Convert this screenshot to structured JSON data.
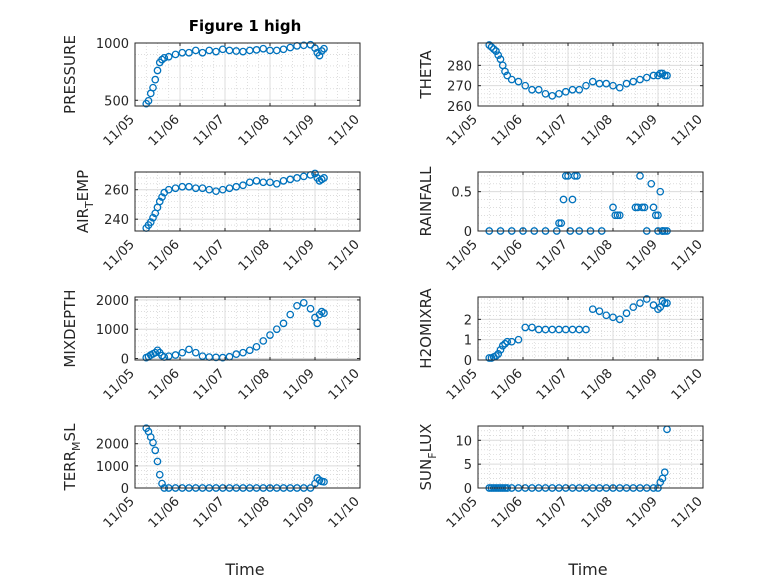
{
  "figure": {
    "title": "Figure 1 high",
    "xlabel": "Time"
  },
  "chart_data": [
    {
      "type": "scatter",
      "title": "Figure 1 high",
      "ylabel": "PRESSURE",
      "ylabel_parts": [
        "PRESSURE"
      ],
      "ylim": [
        450,
        1000
      ],
      "yticks": [
        500,
        1000
      ],
      "ytick_labels": [
        "500",
        "1000"
      ],
      "xlim": [
        0,
        5
      ],
      "xticks": [
        0,
        1,
        2,
        3,
        4,
        5
      ],
      "xtick_labels": [
        "11/05",
        "11/06",
        "11/07",
        "11/08",
        "11/09",
        "11/10"
      ],
      "grid": true,
      "marker_color": "#0072BD",
      "x": [
        0.25,
        0.3,
        0.35,
        0.4,
        0.45,
        0.5,
        0.55,
        0.6,
        0.65,
        0.75,
        0.9,
        1.05,
        1.2,
        1.35,
        1.5,
        1.65,
        1.8,
        1.95,
        2.1,
        2.25,
        2.4,
        2.55,
        2.7,
        2.85,
        3.0,
        3.15,
        3.3,
        3.45,
        3.6,
        3.75,
        3.9,
        4.0,
        4.05,
        4.1,
        4.15,
        4.2
      ],
      "y": [
        470,
        495,
        560,
        610,
        680,
        760,
        830,
        855,
        870,
        880,
        900,
        915,
        915,
        935,
        915,
        935,
        925,
        945,
        935,
        930,
        925,
        935,
        940,
        950,
        935,
        935,
        945,
        960,
        975,
        980,
        985,
        955,
        915,
        890,
        930,
        950
      ]
    },
    {
      "type": "scatter",
      "ylabel": "THETA",
      "ylabel_parts": [
        "THETA"
      ],
      "ylim": [
        260,
        291
      ],
      "yticks": [
        260,
        270,
        280
      ],
      "ytick_labels": [
        "260",
        "270",
        "280"
      ],
      "xlim": [
        0,
        5
      ],
      "xticks": [
        0,
        1,
        2,
        3,
        4,
        5
      ],
      "xtick_labels": [
        "11/05",
        "11/06",
        "11/07",
        "11/08",
        "11/09",
        "11/10"
      ],
      "grid": true,
      "marker_color": "#0072BD",
      "x": [
        0.25,
        0.3,
        0.35,
        0.4,
        0.45,
        0.5,
        0.55,
        0.6,
        0.65,
        0.75,
        0.9,
        1.05,
        1.2,
        1.35,
        1.5,
        1.65,
        1.8,
        1.95,
        2.1,
        2.25,
        2.4,
        2.55,
        2.7,
        2.85,
        3.0,
        3.15,
        3.3,
        3.45,
        3.6,
        3.75,
        3.9,
        4.0,
        4.05,
        4.1,
        4.15,
        4.2
      ],
      "y": [
        290,
        289,
        288,
        287,
        285,
        283,
        280,
        277,
        275,
        273,
        272,
        270,
        268,
        268,
        266,
        265,
        266,
        267,
        268,
        268,
        270,
        272,
        271,
        271,
        270,
        269,
        271,
        272,
        273,
        274,
        275,
        275,
        276,
        276,
        275,
        275
      ]
    },
    {
      "type": "scatter",
      "ylabel": "AIR_TEMP",
      "ylabel_parts": [
        "AIR",
        "T",
        "EMP"
      ],
      "ylim": [
        232,
        272
      ],
      "yticks": [
        240,
        260
      ],
      "ytick_labels": [
        "240",
        "260"
      ],
      "xlim": [
        0,
        5
      ],
      "xticks": [
        0,
        1,
        2,
        3,
        4,
        5
      ],
      "xtick_labels": [
        "11/05",
        "11/06",
        "11/07",
        "11/08",
        "11/09",
        "11/10"
      ],
      "grid": true,
      "marker_color": "#0072BD",
      "x": [
        0.25,
        0.3,
        0.35,
        0.4,
        0.45,
        0.5,
        0.55,
        0.6,
        0.65,
        0.75,
        0.9,
        1.05,
        1.2,
        1.35,
        1.5,
        1.65,
        1.8,
        1.95,
        2.1,
        2.25,
        2.4,
        2.55,
        2.7,
        2.85,
        3.0,
        3.15,
        3.3,
        3.45,
        3.6,
        3.75,
        3.9,
        4.0,
        4.05,
        4.1,
        4.15,
        4.2
      ],
      "y": [
        234,
        236,
        238,
        241,
        244,
        248,
        252,
        255,
        258,
        260,
        261,
        262,
        262,
        261,
        261,
        260,
        259,
        260,
        261,
        262,
        263,
        265,
        266,
        265,
        265,
        264,
        266,
        267,
        268,
        269,
        270,
        271,
        268,
        266,
        267,
        268
      ]
    },
    {
      "type": "scatter",
      "ylabel": "RAINFALL",
      "ylabel_parts": [
        "RAINFALL"
      ],
      "ylim": [
        0,
        0.75
      ],
      "yticks": [
        0,
        0.5
      ],
      "ytick_labels": [
        "0",
        "0.5"
      ],
      "xlim": [
        0,
        5
      ],
      "xticks": [
        0,
        1,
        2,
        3,
        4,
        5
      ],
      "xtick_labels": [
        "11/05",
        "11/06",
        "11/07",
        "11/08",
        "11/09",
        "11/10"
      ],
      "grid": true,
      "marker_color": "#0072BD",
      "x": [
        0.25,
        0.5,
        0.75,
        1.0,
        1.25,
        1.5,
        1.75,
        1.8,
        1.85,
        1.9,
        1.95,
        2.0,
        2.05,
        2.1,
        2.15,
        2.2,
        2.25,
        2.5,
        2.75,
        3.0,
        3.05,
        3.1,
        3.15,
        3.5,
        3.55,
        3.6,
        3.65,
        3.7,
        3.75,
        3.85,
        3.9,
        3.95,
        4.0,
        4.05,
        4.1,
        4.15,
        4.2,
        4.0,
        4.1
      ],
      "y": [
        0,
        0,
        0,
        0,
        0,
        0,
        0,
        0.1,
        0.1,
        0.4,
        0.7,
        0.7,
        0,
        0.4,
        0.7,
        0.7,
        0,
        0,
        0,
        0.3,
        0.2,
        0.2,
        0.2,
        0.3,
        0.3,
        0.7,
        0.3,
        0.3,
        0,
        0.6,
        0.3,
        0.2,
        0.2,
        0.5,
        0,
        0,
        0,
        0,
        0
      ]
    },
    {
      "type": "scatter",
      "ylabel": "MIXDEPTH",
      "ylabel_parts": [
        "MIXDEPTH"
      ],
      "ylim": [
        -50,
        2100
      ],
      "yticks": [
        0,
        1000,
        2000
      ],
      "ytick_labels": [
        "0",
        "1000",
        "2000"
      ],
      "xlim": [
        0,
        5
      ],
      "xticks": [
        0,
        1,
        2,
        3,
        4,
        5
      ],
      "xtick_labels": [
        "11/05",
        "11/06",
        "11/07",
        "11/08",
        "11/09",
        "11/10"
      ],
      "grid": true,
      "marker_color": "#0072BD",
      "x": [
        0.25,
        0.3,
        0.35,
        0.4,
        0.45,
        0.5,
        0.55,
        0.6,
        0.65,
        0.75,
        0.9,
        1.05,
        1.2,
        1.35,
        1.5,
        1.65,
        1.8,
        1.95,
        2.1,
        2.25,
        2.4,
        2.55,
        2.7,
        2.85,
        3.0,
        3.15,
        3.3,
        3.45,
        3.6,
        3.75,
        3.9,
        4.0,
        4.05,
        4.1,
        4.15,
        4.2
      ],
      "y": [
        30,
        60,
        120,
        160,
        200,
        280,
        200,
        100,
        50,
        80,
        120,
        200,
        310,
        200,
        80,
        50,
        40,
        30,
        60,
        150,
        200,
        280,
        400,
        600,
        800,
        1000,
        1200,
        1500,
        1800,
        1900,
        1700,
        1400,
        1200,
        1500,
        1600,
        1550
      ]
    },
    {
      "type": "scatter",
      "ylabel": "H2OMIXRA",
      "ylabel_parts": [
        "H2OMIXRA"
      ],
      "ylim": [
        0,
        3.1
      ],
      "yticks": [
        0,
        1,
        2
      ],
      "ytick_labels": [
        "0",
        "1",
        "2"
      ],
      "xlim": [
        0,
        5
      ],
      "xticks": [
        0,
        1,
        2,
        3,
        4,
        5
      ],
      "xtick_labels": [
        "11/05",
        "11/06",
        "11/07",
        "11/08",
        "11/09",
        "11/10"
      ],
      "grid": true,
      "marker_color": "#0072BD",
      "x": [
        0.25,
        0.3,
        0.35,
        0.4,
        0.45,
        0.5,
        0.55,
        0.6,
        0.65,
        0.75,
        0.9,
        1.05,
        1.2,
        1.35,
        1.5,
        1.65,
        1.8,
        1.95,
        2.1,
        2.25,
        2.4,
        2.55,
        2.7,
        2.85,
        3.0,
        3.15,
        3.3,
        3.45,
        3.6,
        3.75,
        3.9,
        4.0,
        4.05,
        4.1,
        4.15,
        4.2
      ],
      "y": [
        0.1,
        0.1,
        0.15,
        0.2,
        0.3,
        0.5,
        0.7,
        0.8,
        0.9,
        0.9,
        1.0,
        1.6,
        1.6,
        1.5,
        1.5,
        1.5,
        1.5,
        1.5,
        1.5,
        1.5,
        1.5,
        2.5,
        2.4,
        2.2,
        2.1,
        2.0,
        2.3,
        2.6,
        2.8,
        3.0,
        2.7,
        2.5,
        2.6,
        2.9,
        2.8,
        2.8
      ]
    },
    {
      "type": "scatter",
      "ylabel": "TERR_MSL",
      "ylabel_parts": [
        "TERR",
        "M",
        "SL"
      ],
      "ylim": [
        0,
        2800
      ],
      "yticks": [
        0,
        1000,
        2000
      ],
      "ytick_labels": [
        "0",
        "1000",
        "2000"
      ],
      "xlim": [
        0,
        5
      ],
      "xticks": [
        0,
        1,
        2,
        3,
        4,
        5
      ],
      "xtick_labels": [
        "11/05",
        "11/06",
        "11/07",
        "11/08",
        "11/09",
        "11/10"
      ],
      "grid": true,
      "marker_color": "#0072BD",
      "x": [
        0.25,
        0.3,
        0.35,
        0.4,
        0.45,
        0.5,
        0.55,
        0.6,
        0.65,
        0.75,
        0.9,
        1.05,
        1.2,
        1.35,
        1.5,
        1.65,
        1.8,
        1.95,
        2.1,
        2.25,
        2.4,
        2.55,
        2.7,
        2.85,
        3.0,
        3.15,
        3.3,
        3.45,
        3.6,
        3.75,
        3.9,
        4.0,
        4.05,
        4.1,
        4.15,
        4.2
      ],
      "y": [
        2700,
        2550,
        2300,
        2050,
        1700,
        1200,
        600,
        200,
        0,
        0,
        0,
        0,
        0,
        0,
        0,
        0,
        0,
        0,
        0,
        0,
        0,
        0,
        0,
        0,
        0,
        0,
        0,
        0,
        0,
        0,
        0,
        200,
        450,
        350,
        300,
        280
      ]
    },
    {
      "type": "scatter",
      "ylabel": "SUN_FLUX",
      "ylabel_parts": [
        "SUN",
        "F",
        "LUX"
      ],
      "ylim": [
        0,
        13
      ],
      "yticks": [
        0,
        5,
        10
      ],
      "ytick_labels": [
        "0",
        "5",
        "10"
      ],
      "xlim": [
        0,
        5
      ],
      "xticks": [
        0,
        1,
        2,
        3,
        4,
        5
      ],
      "xtick_labels": [
        "11/05",
        "11/06",
        "11/07",
        "11/08",
        "11/09",
        "11/10"
      ],
      "grid": true,
      "marker_color": "#0072BD",
      "x": [
        0.25,
        0.3,
        0.35,
        0.4,
        0.45,
        0.5,
        0.55,
        0.6,
        0.65,
        0.75,
        0.9,
        1.05,
        1.2,
        1.35,
        1.5,
        1.65,
        1.8,
        1.95,
        2.1,
        2.25,
        2.4,
        2.55,
        2.7,
        2.85,
        3.0,
        3.15,
        3.3,
        3.45,
        3.6,
        3.75,
        3.9,
        4.0,
        4.05,
        4.1,
        4.15,
        4.2
      ],
      "y": [
        0,
        0,
        0,
        0,
        0,
        0,
        0,
        0,
        0,
        0,
        0,
        0,
        0,
        0,
        0,
        0,
        0,
        0,
        0,
        0,
        0,
        0,
        0,
        0,
        0,
        0,
        0,
        0,
        0,
        0,
        0,
        0,
        1.2,
        2.0,
        3.3,
        12.3
      ]
    }
  ]
}
